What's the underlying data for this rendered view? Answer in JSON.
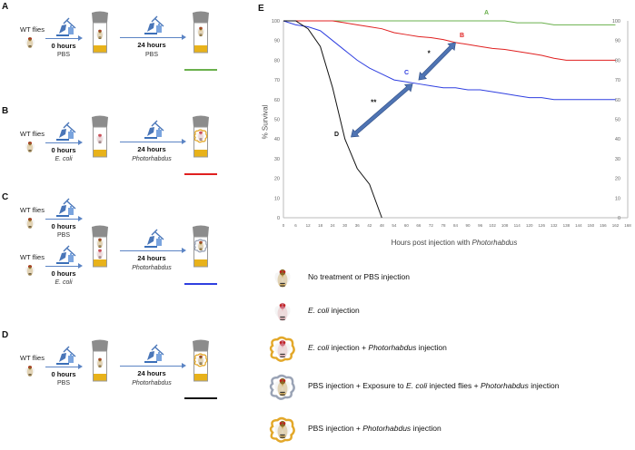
{
  "panels": [
    {
      "label": "A",
      "rows": [
        {
          "group": "WT flies",
          "time": "0 hours",
          "treatment": "PBS",
          "treatment_italic": false
        }
      ],
      "step2_time": "24 hours",
      "step2_treatment": "PBS",
      "step2_italic": false,
      "result_icon": "pbs-fly",
      "line_color": "#6ab04c"
    },
    {
      "label": "B",
      "rows": [
        {
          "group": "WT flies",
          "time": "0 hours",
          "treatment": "E. coli",
          "treatment_italic": true
        }
      ],
      "step2_time": "24 hours",
      "step2_treatment": "Photorhabdus",
      "step2_italic": true,
      "result_icon": "ecoli-photorhabdus-fly",
      "line_color": "#e02020"
    },
    {
      "label": "C",
      "rows": [
        {
          "group": "WT flies",
          "time": "0 hours",
          "treatment": "PBS",
          "treatment_italic": false
        },
        {
          "group": "WT flies",
          "time": "0 hours",
          "treatment": "E. coli",
          "treatment_italic": true
        }
      ],
      "step2_time": "24 hours",
      "step2_treatment": "Photorhabdus",
      "step2_italic": true,
      "result_icon": "exposed-photorhabdus-fly",
      "line_color": "#2f3fe0"
    },
    {
      "label": "D",
      "rows": [
        {
          "group": "WT flies",
          "time": "0 hours",
          "treatment": "PBS",
          "treatment_italic": false
        }
      ],
      "step2_time": "24 hours",
      "step2_treatment": "Photorhabdus",
      "step2_italic": true,
      "result_icon": "pbs-photorhabdus-fly",
      "line_color": "#111111"
    }
  ],
  "chart_data": {
    "type": "line",
    "panel_label": "E",
    "xlabel_parts": [
      "Hours post injection with ",
      "Photorhabdus"
    ],
    "ylabel": "% Survival",
    "xlim": [
      0,
      168
    ],
    "ylim": [
      0,
      100
    ],
    "x_ticks": [
      0,
      6,
      12,
      18,
      24,
      30,
      36,
      42,
      48,
      54,
      60,
      66,
      72,
      78,
      84,
      90,
      96,
      102,
      108,
      114,
      120,
      126,
      132,
      138,
      144,
      150,
      156,
      162,
      168
    ],
    "y_ticks": [
      0,
      10,
      20,
      30,
      40,
      50,
      60,
      70,
      80,
      90,
      100
    ],
    "right_axis": true,
    "grid": false,
    "series": [
      {
        "name": "A",
        "color": "#6ab04c",
        "x": [
          0,
          6,
          12,
          18,
          24,
          30,
          36,
          42,
          48,
          54,
          60,
          66,
          72,
          78,
          84,
          90,
          96,
          102,
          108,
          114,
          120,
          126,
          132,
          138,
          144,
          150,
          156,
          162
        ],
        "y": [
          100,
          100,
          100,
          100,
          100,
          100,
          100,
          100,
          100,
          100,
          100,
          100,
          100,
          100,
          100,
          100,
          100,
          100,
          100,
          99,
          99,
          99,
          98,
          98,
          98,
          98,
          98,
          98
        ]
      },
      {
        "name": "B",
        "color": "#e02020",
        "x": [
          0,
          6,
          12,
          18,
          24,
          30,
          36,
          42,
          48,
          54,
          60,
          66,
          72,
          78,
          84,
          90,
          96,
          102,
          108,
          114,
          120,
          126,
          132,
          138,
          144,
          150,
          156,
          162
        ],
        "y": [
          100,
          100,
          100,
          100,
          100,
          99,
          98,
          97,
          96,
          94,
          93,
          92,
          91.5,
          90.5,
          89,
          88,
          87,
          86,
          85.5,
          84.5,
          83.5,
          82.5,
          81,
          80,
          80,
          80,
          80,
          80
        ]
      },
      {
        "name": "C",
        "color": "#2f3fe0",
        "x": [
          0,
          6,
          12,
          18,
          24,
          30,
          36,
          42,
          48,
          54,
          60,
          66,
          72,
          78,
          84,
          90,
          96,
          102,
          108,
          114,
          120,
          126,
          132,
          138,
          144,
          150,
          156,
          162
        ],
        "y": [
          100,
          98,
          97,
          95,
          90,
          85,
          80,
          76,
          73,
          70,
          69,
          68,
          67,
          66,
          66,
          65,
          65,
          64,
          63,
          62,
          61,
          61,
          60,
          60,
          60,
          60,
          60,
          60
        ]
      },
      {
        "name": "D",
        "color": "#111111",
        "x": [
          0,
          6,
          12,
          18,
          24,
          30,
          36,
          42,
          48
        ],
        "y": [
          100,
          100,
          96,
          87,
          66,
          40,
          25,
          17,
          0
        ]
      }
    ],
    "annotations": [
      {
        "text": "*",
        "between": [
          "C",
          "B"
        ],
        "from": [
          66,
          70
        ],
        "to": [
          84,
          89
        ]
      },
      {
        "text": "**",
        "between": [
          "D",
          "C"
        ],
        "from": [
          33,
          41
        ],
        "to": [
          63,
          68
        ]
      }
    ]
  },
  "legend": {
    "items": [
      {
        "icon": "pbs-fly",
        "parts": [
          {
            "t": "No treatment or PBS injection",
            "i": false
          }
        ]
      },
      {
        "icon": "ecoli-fly",
        "parts": [
          {
            "t": "E. coli",
            "i": true
          },
          {
            "t": " injection",
            "i": false
          }
        ]
      },
      {
        "icon": "ecoli-photorhabdus-fly",
        "parts": [
          {
            "t": "E. coli",
            "i": true
          },
          {
            "t": " injection + ",
            "i": false
          },
          {
            "t": "Photorhabdus",
            "i": true
          },
          {
            "t": " injection",
            "i": false
          }
        ]
      },
      {
        "icon": "exposed-photorhabdus-fly",
        "parts": [
          {
            "t": "PBS injection + Exposure to ",
            "i": false
          },
          {
            "t": "E. coli",
            "i": true
          },
          {
            "t": " injected flies + ",
            "i": false
          },
          {
            "t": "Photorhabdus",
            "i": true
          },
          {
            "t": " injection",
            "i": false
          }
        ]
      },
      {
        "icon": "pbs-photorhabdus-fly",
        "parts": [
          {
            "t": "PBS injection + ",
            "i": false
          },
          {
            "t": "Photorhabdus",
            "i": true
          },
          {
            "t": " injection",
            "i": false
          }
        ]
      }
    ]
  }
}
